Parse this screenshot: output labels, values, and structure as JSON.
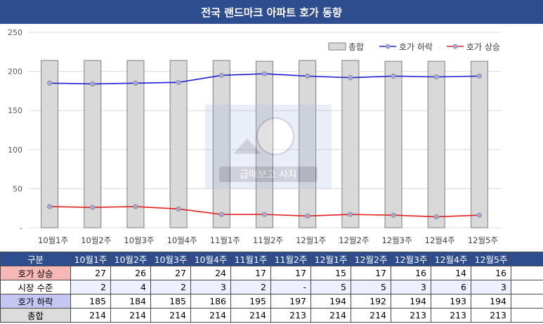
{
  "title": "전국 랜드마크 아파트 호가 동향",
  "chart_data": {
    "type": "bar",
    "categories": [
      "10월1주",
      "10월2주",
      "10월3주",
      "10월4주",
      "11월1주",
      "11월2주",
      "12월1주",
      "12월2주",
      "12월3주",
      "12월4주",
      "12월5주"
    ],
    "ylim": [
      0,
      250
    ],
    "yticks": [
      0,
      50,
      100,
      150,
      200,
      250
    ],
    "ytick_labels": [
      "-",
      "50",
      "100",
      "150",
      "200",
      "250"
    ],
    "grid": true,
    "legend_position": "top-right",
    "series": [
      {
        "name": "총합",
        "kind": "bar",
        "color": "#d9d9d9",
        "values": [
          214,
          214,
          214,
          214,
          214,
          213,
          214,
          214,
          213,
          213,
          213
        ]
      },
      {
        "name": "호가 하락",
        "kind": "line",
        "color": "#1f1fd6",
        "values": [
          185,
          184,
          185,
          186,
          195,
          197,
          194,
          192,
          194,
          193,
          194
        ]
      },
      {
        "name": "호가 상승",
        "kind": "line",
        "color": "#e02020",
        "values": [
          27,
          26,
          27,
          24,
          17,
          17,
          15,
          17,
          16,
          14,
          16
        ]
      }
    ]
  },
  "table": {
    "header_label": "구분",
    "columns": [
      "10월1주",
      "10월2주",
      "10월3주",
      "10월4주",
      "11월1주",
      "11월2주",
      "12월1주",
      "12월2주",
      "12월3주",
      "12월4주",
      "12월5주"
    ],
    "rows": [
      {
        "label": "호가 상승",
        "values": [
          "27",
          "26",
          "27",
          "24",
          "17",
          "17",
          "15",
          "17",
          "16",
          "14",
          "16"
        ]
      },
      {
        "label": "시장 수준",
        "values": [
          "2",
          "4",
          "2",
          "3",
          "2",
          "-",
          "5",
          "5",
          "3",
          "6",
          "3"
        ]
      },
      {
        "label": "호가 하락",
        "values": [
          "185",
          "184",
          "185",
          "186",
          "195",
          "197",
          "194",
          "192",
          "194",
          "193",
          "194"
        ]
      },
      {
        "label": "총합",
        "values": [
          "214",
          "214",
          "214",
          "214",
          "214",
          "213",
          "214",
          "214",
          "213",
          "213",
          "213"
        ]
      }
    ]
  },
  "watermark": {
    "text": "급매보고 사자"
  }
}
